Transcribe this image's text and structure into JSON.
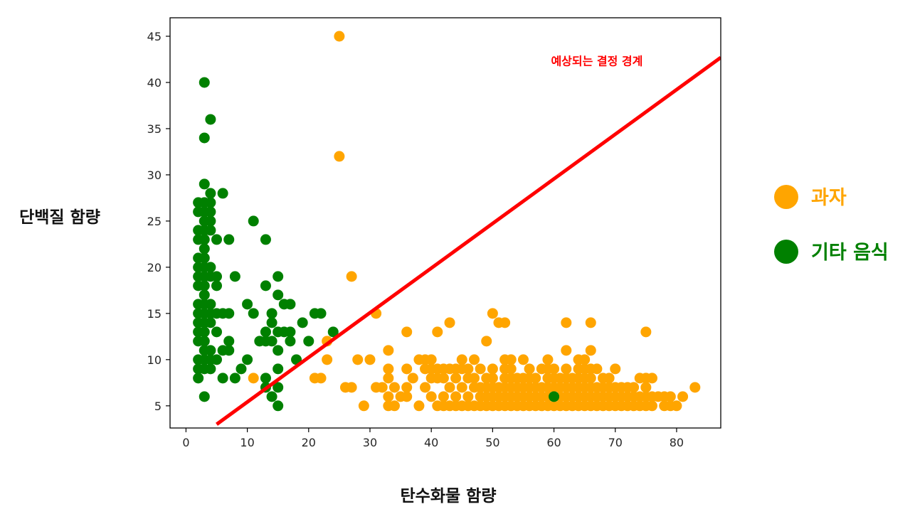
{
  "chart_data": {
    "type": "scatter",
    "title": "",
    "xlabel": "탄수화물 함량",
    "ylabel": "단백질 함량",
    "xlim": [
      -2.6,
      87.2
    ],
    "ylim": [
      2.6,
      47.0
    ],
    "xticks": [
      0,
      10,
      20,
      30,
      40,
      50,
      60,
      70,
      80
    ],
    "yticks": [
      5,
      10,
      15,
      20,
      25,
      30,
      35,
      40,
      45
    ],
    "grid": false,
    "legend_position": "right",
    "series": [
      {
        "name": "과자",
        "color": "#FFA500",
        "points": [
          [
            25,
            45
          ],
          [
            25,
            32
          ],
          [
            27,
            19
          ],
          [
            31,
            15
          ],
          [
            23,
            12
          ],
          [
            23,
            10
          ],
          [
            21,
            8
          ],
          [
            22,
            8
          ],
          [
            11,
            8
          ],
          [
            26,
            7
          ],
          [
            27,
            7
          ],
          [
            28,
            10
          ],
          [
            29,
            5
          ],
          [
            30,
            10
          ],
          [
            31,
            7
          ],
          [
            32,
            7
          ],
          [
            33,
            11
          ],
          [
            33,
            9
          ],
          [
            33,
            8
          ],
          [
            33,
            6
          ],
          [
            33,
            5
          ],
          [
            34,
            7
          ],
          [
            34,
            5
          ],
          [
            35,
            6
          ],
          [
            36,
            13
          ],
          [
            36,
            9
          ],
          [
            36,
            7
          ],
          [
            36,
            6
          ],
          [
            37,
            8
          ],
          [
            38,
            10
          ],
          [
            38,
            5
          ],
          [
            39,
            10
          ],
          [
            39,
            9
          ],
          [
            39,
            7
          ],
          [
            40,
            10
          ],
          [
            40,
            9
          ],
          [
            40,
            8
          ],
          [
            40,
            6
          ],
          [
            41,
            13
          ],
          [
            41,
            9
          ],
          [
            41,
            8
          ],
          [
            41,
            5
          ],
          [
            42,
            9
          ],
          [
            42,
            8
          ],
          [
            42,
            6
          ],
          [
            42,
            5
          ],
          [
            43,
            14
          ],
          [
            43,
            9
          ],
          [
            43,
            7
          ],
          [
            43,
            5
          ],
          [
            44,
            9
          ],
          [
            44,
            8
          ],
          [
            44,
            6
          ],
          [
            44,
            5
          ],
          [
            45,
            10
          ],
          [
            45,
            9
          ],
          [
            45,
            7
          ],
          [
            45,
            5
          ],
          [
            46,
            9
          ],
          [
            46,
            8
          ],
          [
            46,
            6
          ],
          [
            46,
            5
          ],
          [
            47,
            10
          ],
          [
            47,
            8
          ],
          [
            47,
            7
          ],
          [
            47,
            5
          ],
          [
            48,
            9
          ],
          [
            48,
            7
          ],
          [
            48,
            6
          ],
          [
            48,
            5
          ],
          [
            49,
            12
          ],
          [
            49,
            8
          ],
          [
            49,
            7
          ],
          [
            49,
            6
          ],
          [
            49,
            5
          ],
          [
            50,
            15
          ],
          [
            50,
            9
          ],
          [
            50,
            8
          ],
          [
            50,
            7
          ],
          [
            50,
            6
          ],
          [
            50,
            5
          ],
          [
            51,
            14
          ],
          [
            51,
            7
          ],
          [
            51,
            6
          ],
          [
            51,
            5
          ],
          [
            52,
            14
          ],
          [
            52,
            10
          ],
          [
            52,
            9
          ],
          [
            52,
            8
          ],
          [
            52,
            7
          ],
          [
            52,
            6
          ],
          [
            52,
            5
          ],
          [
            53,
            10
          ],
          [
            53,
            9
          ],
          [
            53,
            8
          ],
          [
            53,
            7
          ],
          [
            53,
            6
          ],
          [
            53,
            5
          ],
          [
            54,
            8
          ],
          [
            54,
            7
          ],
          [
            54,
            6
          ],
          [
            54,
            5
          ],
          [
            55,
            10
          ],
          [
            55,
            8
          ],
          [
            55,
            7
          ],
          [
            55,
            6
          ],
          [
            55,
            5
          ],
          [
            56,
            9
          ],
          [
            56,
            8
          ],
          [
            56,
            7
          ],
          [
            56,
            6
          ],
          [
            56,
            5
          ],
          [
            57,
            8
          ],
          [
            57,
            7
          ],
          [
            57,
            6
          ],
          [
            57,
            5
          ],
          [
            58,
            9
          ],
          [
            58,
            7
          ],
          [
            58,
            6
          ],
          [
            58,
            5
          ],
          [
            59,
            10
          ],
          [
            59,
            9
          ],
          [
            59,
            8
          ],
          [
            59,
            7
          ],
          [
            59,
            6
          ],
          [
            59,
            5
          ],
          [
            60,
            9
          ],
          [
            60,
            8
          ],
          [
            60,
            7
          ],
          [
            60,
            5
          ],
          [
            61,
            8
          ],
          [
            61,
            7
          ],
          [
            61,
            6
          ],
          [
            61,
            5
          ],
          [
            62,
            14
          ],
          [
            62,
            11
          ],
          [
            62,
            9
          ],
          [
            62,
            8
          ],
          [
            62,
            7
          ],
          [
            62,
            6
          ],
          [
            62,
            5
          ],
          [
            63,
            8
          ],
          [
            63,
            7
          ],
          [
            63,
            6
          ],
          [
            63,
            5
          ],
          [
            64,
            10
          ],
          [
            64,
            9
          ],
          [
            64,
            8
          ],
          [
            64,
            7
          ],
          [
            64,
            6
          ],
          [
            64,
            5
          ],
          [
            65,
            10
          ],
          [
            65,
            9
          ],
          [
            65,
            8
          ],
          [
            65,
            7
          ],
          [
            65,
            6
          ],
          [
            65,
            5
          ],
          [
            66,
            14
          ],
          [
            66,
            11
          ],
          [
            66,
            9
          ],
          [
            66,
            8
          ],
          [
            66,
            7
          ],
          [
            66,
            6
          ],
          [
            66,
            5
          ],
          [
            67,
            9
          ],
          [
            67,
            7
          ],
          [
            67,
            6
          ],
          [
            67,
            5
          ],
          [
            68,
            8
          ],
          [
            68,
            7
          ],
          [
            68,
            6
          ],
          [
            68,
            5
          ],
          [
            69,
            8
          ],
          [
            69,
            7
          ],
          [
            69,
            6
          ],
          [
            69,
            5
          ],
          [
            70,
            9
          ],
          [
            70,
            7
          ],
          [
            70,
            6
          ],
          [
            70,
            5
          ],
          [
            71,
            7
          ],
          [
            71,
            6
          ],
          [
            71,
            5
          ],
          [
            72,
            7
          ],
          [
            72,
            6
          ],
          [
            72,
            5
          ],
          [
            73,
            7
          ],
          [
            73,
            6
          ],
          [
            73,
            5
          ],
          [
            74,
            8
          ],
          [
            74,
            6
          ],
          [
            74,
            5
          ],
          [
            75,
            13
          ],
          [
            75,
            8
          ],
          [
            75,
            7
          ],
          [
            75,
            6
          ],
          [
            75,
            5
          ],
          [
            76,
            8
          ],
          [
            76,
            6
          ],
          [
            76,
            5
          ],
          [
            77,
            6
          ],
          [
            78,
            6
          ],
          [
            78,
            5
          ],
          [
            79,
            6
          ],
          [
            79,
            5
          ],
          [
            80,
            5
          ],
          [
            81,
            6
          ],
          [
            83,
            7
          ]
        ]
      },
      {
        "name": "기타 음식",
        "color": "#008000",
        "points": [
          [
            3,
            40
          ],
          [
            4,
            36
          ],
          [
            3,
            34
          ],
          [
            3,
            29
          ],
          [
            4,
            28
          ],
          [
            6,
            28
          ],
          [
            2,
            27
          ],
          [
            3,
            27
          ],
          [
            4,
            27
          ],
          [
            3,
            26
          ],
          [
            2,
            26
          ],
          [
            4,
            26
          ],
          [
            3,
            25
          ],
          [
            4,
            25
          ],
          [
            2,
            24
          ],
          [
            3,
            24
          ],
          [
            4,
            24
          ],
          [
            2,
            23
          ],
          [
            3,
            23
          ],
          [
            5,
            23
          ],
          [
            7,
            23
          ],
          [
            3,
            22
          ],
          [
            2,
            21
          ],
          [
            3,
            21
          ],
          [
            2,
            20
          ],
          [
            3,
            20
          ],
          [
            4,
            20
          ],
          [
            2,
            19
          ],
          [
            3,
            19
          ],
          [
            4,
            19
          ],
          [
            5,
            19
          ],
          [
            2,
            18
          ],
          [
            3,
            18
          ],
          [
            5,
            18
          ],
          [
            3,
            17
          ],
          [
            2,
            16
          ],
          [
            3,
            16
          ],
          [
            4,
            16
          ],
          [
            2,
            15
          ],
          [
            3,
            15
          ],
          [
            4,
            15
          ],
          [
            5,
            15
          ],
          [
            6,
            15
          ],
          [
            7,
            15
          ],
          [
            2,
            14
          ],
          [
            3,
            14
          ],
          [
            4,
            14
          ],
          [
            2,
            13
          ],
          [
            3,
            13
          ],
          [
            5,
            13
          ],
          [
            2,
            12
          ],
          [
            3,
            12
          ],
          [
            3,
            11
          ],
          [
            4,
            11
          ],
          [
            6,
            11
          ],
          [
            7,
            11
          ],
          [
            2,
            10
          ],
          [
            3,
            10
          ],
          [
            4,
            10
          ],
          [
            5,
            10
          ],
          [
            7,
            12
          ],
          [
            2,
            9
          ],
          [
            3,
            9
          ],
          [
            4,
            9
          ],
          [
            2,
            8
          ],
          [
            6,
            8
          ],
          [
            3,
            6
          ],
          [
            8,
            19
          ],
          [
            11,
            25
          ],
          [
            13,
            23
          ],
          [
            13,
            18
          ],
          [
            15,
            19
          ],
          [
            10,
            16
          ],
          [
            11,
            15
          ],
          [
            15,
            17
          ],
          [
            14,
            15
          ],
          [
            16,
            16
          ],
          [
            17,
            16
          ],
          [
            8,
            8
          ],
          [
            9,
            9
          ],
          [
            10,
            10
          ],
          [
            12,
            12
          ],
          [
            13,
            13
          ],
          [
            14,
            12
          ],
          [
            15,
            13
          ],
          [
            15,
            11
          ],
          [
            16,
            13
          ],
          [
            17,
            13
          ],
          [
            17,
            12
          ],
          [
            14,
            14
          ],
          [
            13,
            12
          ],
          [
            18,
            10
          ],
          [
            19,
            14
          ],
          [
            20,
            12
          ],
          [
            21,
            15
          ],
          [
            22,
            15
          ],
          [
            24,
            13
          ],
          [
            13,
            8
          ],
          [
            13,
            7
          ],
          [
            14,
            6
          ],
          [
            15,
            5
          ],
          [
            15,
            7
          ],
          [
            15,
            9
          ],
          [
            60,
            6
          ]
        ]
      }
    ],
    "annotations": [
      {
        "text": "예상되는 결정 경계",
        "color": "#FF0000",
        "at": [
          67,
          41.9
        ]
      }
    ],
    "lines": [
      {
        "name": "decision-boundary",
        "color": "#FF0000",
        "from": [
          5,
          3.0
        ],
        "to": [
          87.2,
          42.7
        ]
      }
    ]
  }
}
